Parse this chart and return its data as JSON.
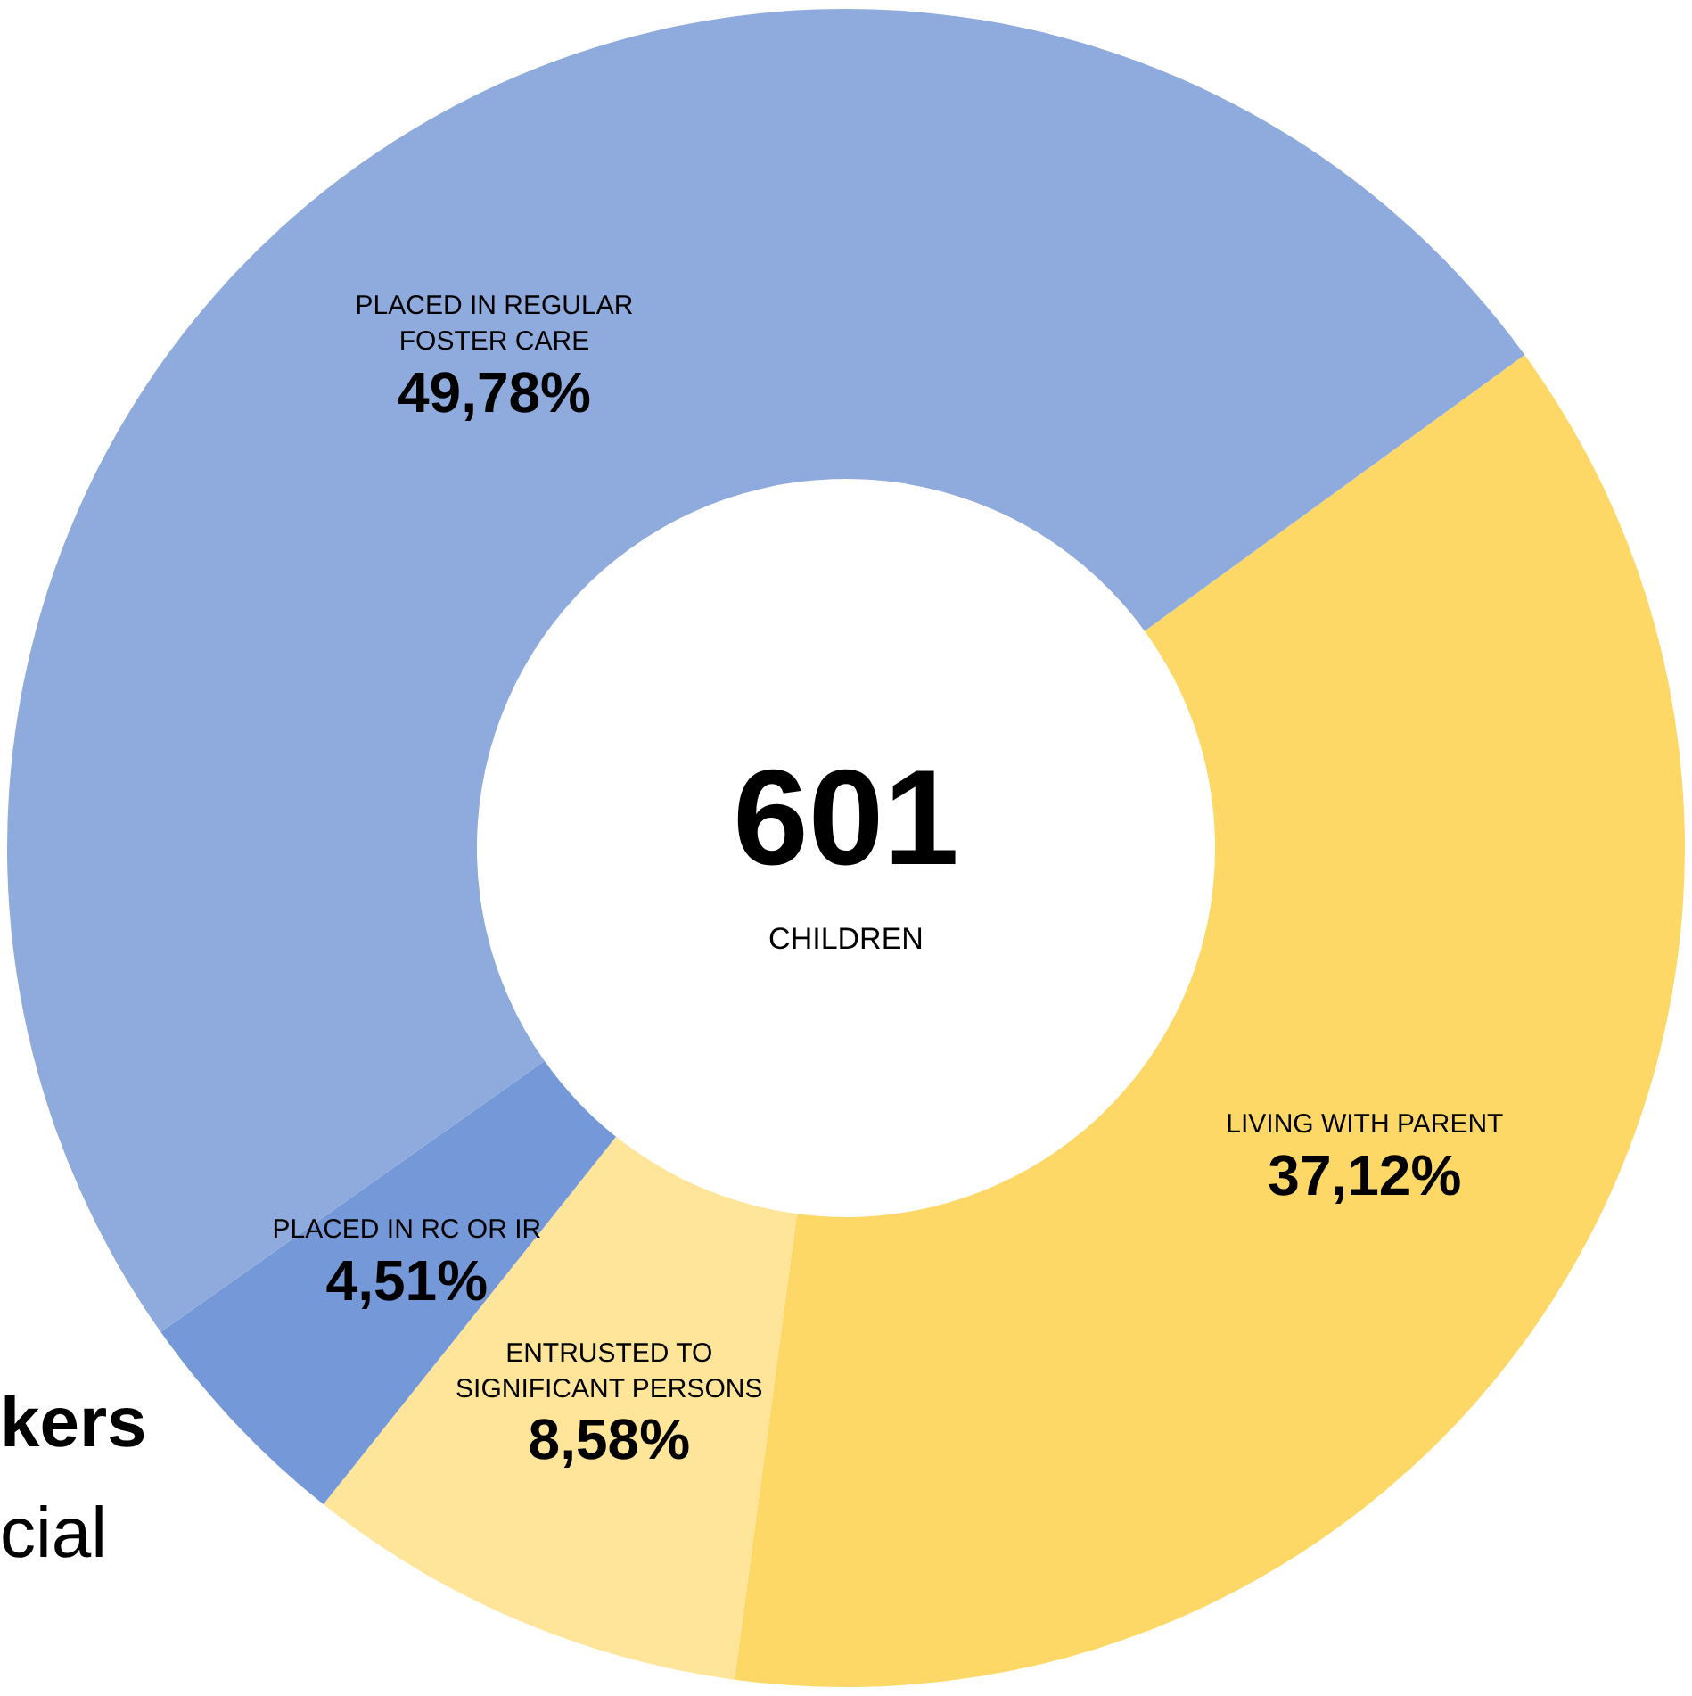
{
  "chart_data": {
    "type": "donut",
    "categories": [
      "LIVING WITH PARENT",
      "ENTRUSTED TO SIGNIFICANT PERSONS",
      "PLACED IN RC OR IR",
      "PLACED IN REGULAR FOSTER CARE"
    ],
    "values": [
      37.12,
      8.58,
      4.51,
      49.78
    ],
    "value_labels": [
      "37,12%",
      "8,58%",
      "4,51%",
      "49,78%"
    ],
    "colors": [
      "#fdd867",
      "#fee599",
      "#7598d8",
      "#8faadc"
    ],
    "legend": false,
    "annotations": [
      "601",
      "CHILDREN",
      "kers",
      "cial"
    ]
  }
}
